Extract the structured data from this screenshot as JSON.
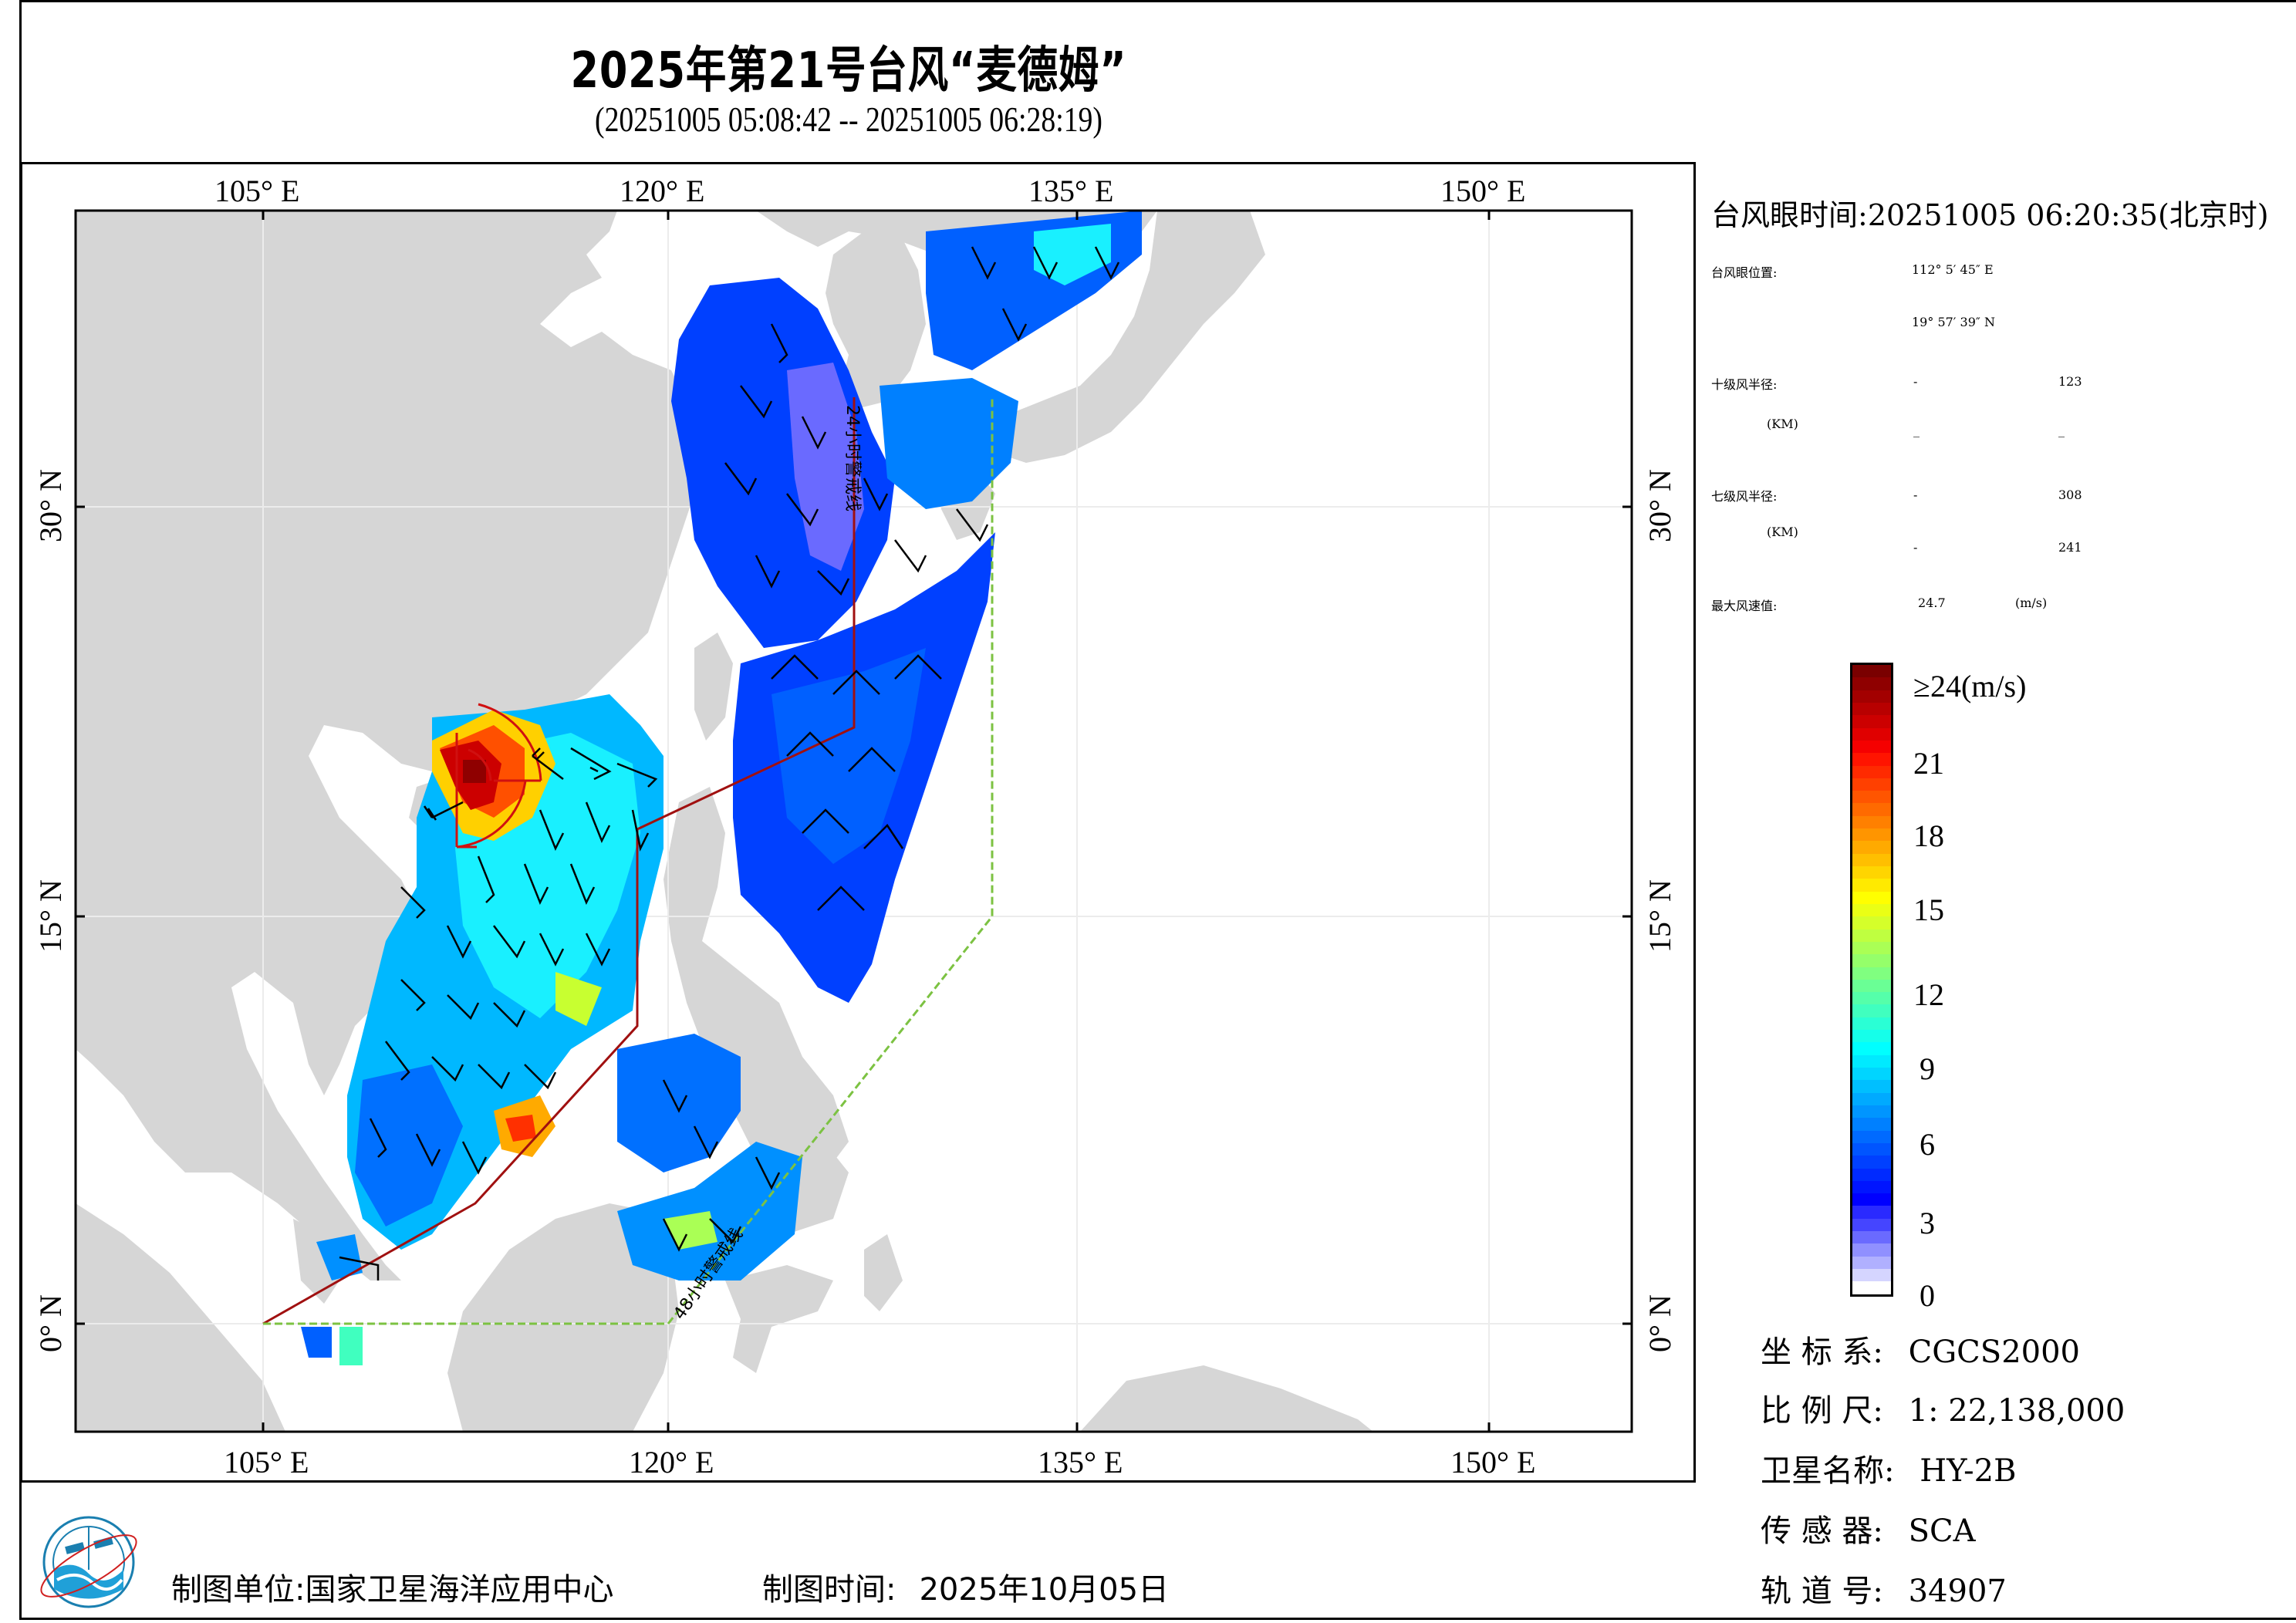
{
  "title": "2025年第21号台风“麦德姆”",
  "subtitle": "(20251005 05:08:42 -- 20251005 06:28:19)",
  "axes": {
    "top_lon_labels": [
      "105° E",
      "120° E",
      "135° E",
      "150° E"
    ],
    "bottom_lon_labels": [
      "105° E",
      "120° E",
      "135° E",
      "150° E"
    ],
    "left_lat_labels": [
      "30° N",
      "15° N",
      "0° N"
    ],
    "right_lat_labels": [
      "30° N",
      "15° N",
      "0° N"
    ]
  },
  "map": {
    "projection_extent": {
      "lon_min": 98.1,
      "lon_max": 155.5,
      "lat_min": -4.0,
      "lat_max": 40.8
    },
    "grid_lons": [
      105,
      120,
      135,
      150
    ],
    "grid_lats": [
      0,
      15,
      30
    ],
    "land_color": "#d6d6d6",
    "ocean_color": "#ffffff",
    "warning_line_24h": {
      "label": "24小时警戒线",
      "color": "#a01010"
    },
    "warning_line_48h": {
      "label": "48小时警戒线",
      "color": "#7cc242"
    },
    "typhoon_eye": {
      "lon": 112.1,
      "lat": 19.96
    }
  },
  "info": {
    "eye_time_label": "台风眼时间:",
    "eye_time_value": "20251005 06:20:35(北京时)",
    "eye_pos_label": "台风眼位置:",
    "eye_lon": "112° 5′ 45″ E",
    "eye_lat": "19° 57′ 39″ N",
    "r10_label": "十级风半径:",
    "r10_unit": "(KM)",
    "r10_values": [
      "-",
      "123",
      "_",
      "_"
    ],
    "r7_label": "七级风半径:",
    "r7_unit": "(KM)",
    "r7_values": [
      "-",
      "308",
      "-",
      "241"
    ],
    "max_wind_label": "最大风速值:",
    "max_wind_value": "24.7",
    "max_wind_unit": "(m/s)"
  },
  "colorbar": {
    "labels": [
      "≥24(m/s)",
      "21",
      "18",
      "15",
      "12",
      "9",
      "6",
      "3",
      "0"
    ],
    "colors": [
      "#7a0000",
      "#8f0000",
      "#a30000",
      "#b80000",
      "#cc0000",
      "#e00000",
      "#f50000",
      "#ff1400",
      "#ff2a00",
      "#ff4000",
      "#ff5500",
      "#ff6a00",
      "#ff8000",
      "#ff9500",
      "#ffaa00",
      "#ffbf00",
      "#ffd500",
      "#ffea00",
      "#ffff00",
      "#eaff15",
      "#d5ff2a",
      "#bfff40",
      "#aaff55",
      "#95ff6a",
      "#80ff80",
      "#6aff95",
      "#55ffaa",
      "#40ffbf",
      "#2affd5",
      "#15ffea",
      "#00ffff",
      "#00eaff",
      "#00d5ff",
      "#00bfff",
      "#00aaff",
      "#0095ff",
      "#0080ff",
      "#006aff",
      "#0055ff",
      "#0040ff",
      "#002aff",
      "#0015ff",
      "#0000ff",
      "#2a2aff",
      "#4545ff",
      "#6a6aff",
      "#9090ff",
      "#b0b0ff",
      "#d5d5ff",
      "#ffffff"
    ]
  },
  "meta": {
    "crs_label": "坐 标 系:",
    "crs_value": "CGCS2000",
    "scale_label": "比 例 尺:",
    "scale_value": "1: 22,138,000",
    "sat_label": "卫星名称:",
    "sat_value": "HY-2B",
    "sensor_label": "传 感 器:",
    "sensor_value": "SCA",
    "orbit_label": "轨 道 号:",
    "orbit_value": "34907"
  },
  "footer": {
    "org_label": "制图单位:",
    "org_value": "国家卫星海洋应用中心",
    "date_label": "制图时间:",
    "date_value": "2025年10月05日"
  }
}
